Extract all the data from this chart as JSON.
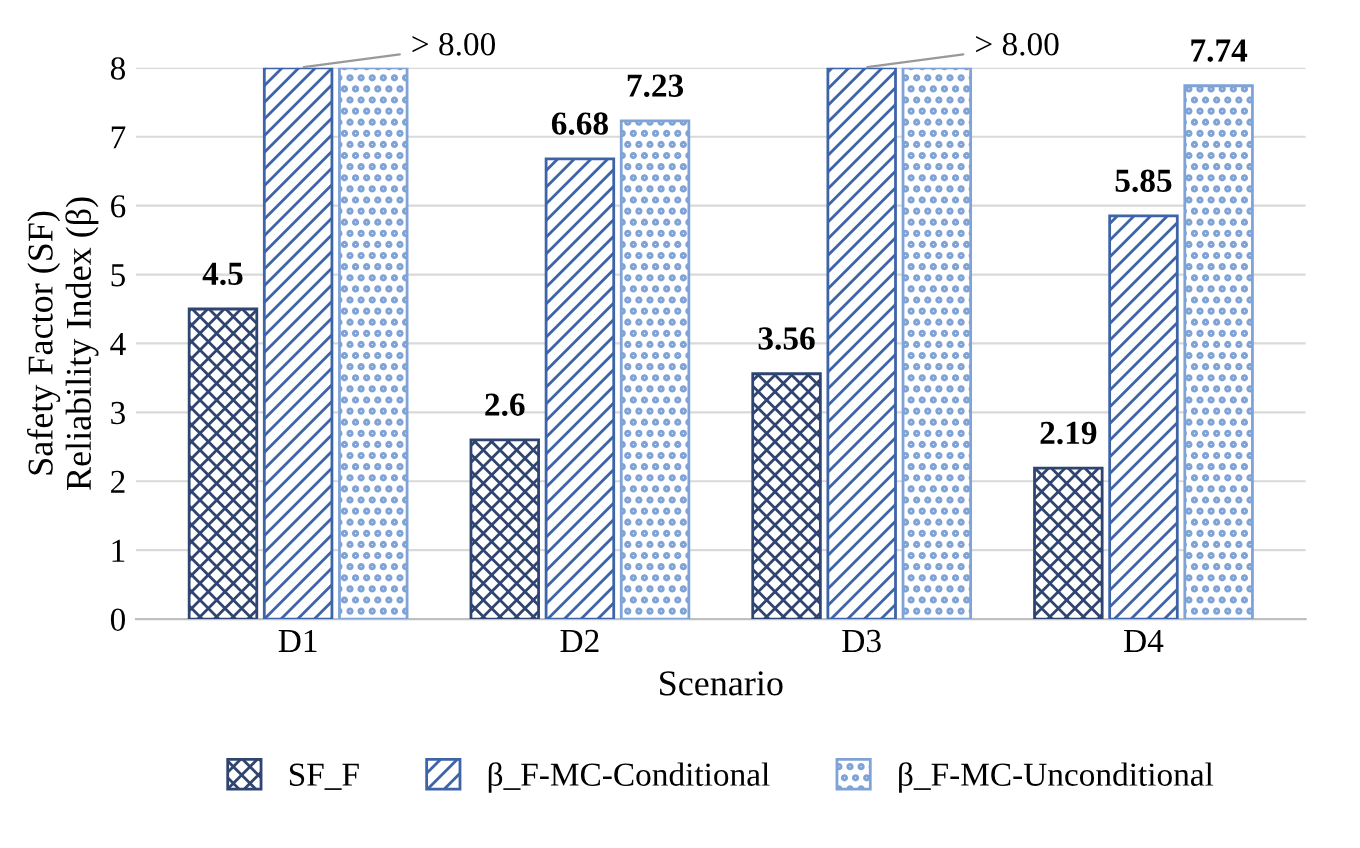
{
  "chart_data": {
    "type": "bar",
    "xlabel": "Scenario",
    "ylabel": "Safety Factor (SF)\nReliability Index (β)",
    "categories": [
      "D1",
      "D2",
      "D3",
      "D4"
    ],
    "series": [
      {
        "name": "SF_F",
        "color": "#2f4470",
        "values": [
          4.5,
          2.6,
          3.56,
          2.19
        ],
        "value_labels": [
          "4.5",
          "2.6",
          "3.56",
          "2.19"
        ]
      },
      {
        "name": "β_F-MC-Conditional",
        "color": "#3d64a8",
        "values": [
          8,
          6.68,
          8,
          5.85
        ],
        "value_labels": [
          "> 8.00",
          "6.68",
          "> 8.00",
          "5.85"
        ]
      },
      {
        "name": "β_F-MC-Unconditional",
        "color": "#7fa3d6",
        "values": [
          8,
          7.23,
          8,
          7.74
        ],
        "value_labels": [
          null,
          "7.23",
          null,
          "7.74"
        ]
      }
    ],
    "ylim": [
      0,
      8
    ],
    "yticks": [
      0,
      1,
      2,
      3,
      4,
      5,
      6,
      7,
      8
    ],
    "grid": "y",
    "legend": "bottom"
  }
}
